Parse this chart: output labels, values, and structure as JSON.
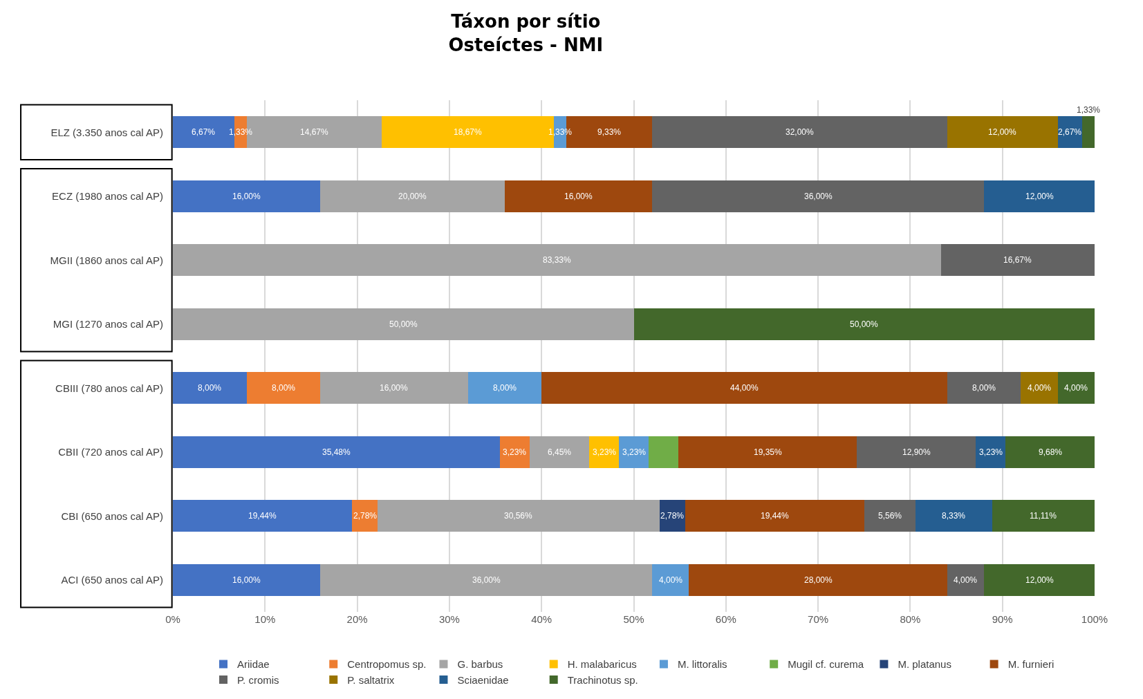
{
  "chart_data": {
    "type": "bar",
    "orientation": "horizontal",
    "stacked": true,
    "title": "Táxon por sítio\nOsteíctes - NMI",
    "categories": [
      "ELZ (3.350 anos cal AP)",
      "ECZ (1980 anos cal AP)",
      "MGII (1860 anos cal AP)",
      "MGI (1270 anos cal AP)",
      "CBIII (780 anos cal AP)",
      "CBII (720 anos cal AP)",
      "CBI (650 anos cal AP)",
      "ACI (650 anos cal AP)"
    ],
    "series": [
      {
        "name": "Ariidae",
        "color": "#4472c4",
        "values": [
          6.67,
          16,
          null,
          null,
          8,
          35.48,
          19.44,
          16
        ],
        "value_labels": [
          "6,67%",
          "16,00%",
          null,
          null,
          "8,00%",
          "35,48%",
          "19,44%",
          "16,00%"
        ]
      },
      {
        "name": "Centropomus sp.",
        "color": "#ed7d31",
        "values": [
          1.33,
          null,
          null,
          null,
          8,
          3.23,
          2.78,
          null
        ],
        "value_labels": [
          "1,33%",
          null,
          null,
          null,
          "8,00%",
          "3,23%",
          "2,78%",
          null
        ]
      },
      {
        "name": "G. barbus",
        "color": "#a5a5a5",
        "values": [
          14.67,
          20,
          83.33,
          50,
          16,
          6.45,
          30.56,
          36
        ],
        "value_labels": [
          "14,67%",
          "20,00%",
          "83,33%",
          "50,00%",
          "16,00%",
          "6,45%",
          "30,56%",
          "36,00%"
        ]
      },
      {
        "name": "H. malabaricus",
        "color": "#ffc000",
        "values": [
          18.67,
          null,
          null,
          null,
          null,
          3.23,
          null,
          null
        ],
        "value_labels": [
          "18,67%",
          null,
          null,
          null,
          null,
          "3,23%",
          null,
          null
        ]
      },
      {
        "name": "M. littoralis",
        "color": "#5b9bd5",
        "values": [
          1.33,
          null,
          null,
          null,
          8,
          3.23,
          null,
          4
        ],
        "value_labels": [
          "1,33%",
          null,
          null,
          null,
          "8,00%",
          "3,23%",
          null,
          "4,00%"
        ]
      },
      {
        "name": "Mugil cf. curema",
        "color": "#70ad47",
        "values": [
          null,
          null,
          null,
          null,
          null,
          3.23,
          null,
          null
        ],
        "value_labels": [
          null,
          null,
          null,
          null,
          null,
          null,
          null,
          null
        ]
      },
      {
        "name": "M. platanus",
        "color": "#264478",
        "values": [
          null,
          null,
          null,
          null,
          null,
          null,
          2.78,
          null
        ],
        "value_labels": [
          null,
          null,
          null,
          null,
          null,
          null,
          "2,78%",
          null
        ]
      },
      {
        "name": "M. furnieri",
        "color": "#9e480e",
        "values": [
          9.33,
          16,
          null,
          null,
          44,
          19.35,
          19.44,
          28
        ],
        "value_labels": [
          "9,33%",
          "16,00%",
          null,
          null,
          "44,00%",
          "19,35%",
          "19,44%",
          "28,00%"
        ]
      },
      {
        "name": "P. cromis",
        "color": "#636363",
        "values": [
          32,
          36,
          16.67,
          null,
          8,
          12.9,
          5.56,
          4
        ],
        "value_labels": [
          "32,00%",
          "36,00%",
          "16,67%",
          null,
          "8,00%",
          "12,90%",
          "5,56%",
          "4,00%"
        ]
      },
      {
        "name": "P. saltatrix",
        "color": "#997300",
        "values": [
          12,
          null,
          null,
          null,
          4,
          null,
          null,
          null
        ],
        "value_labels": [
          "12,00%",
          null,
          null,
          null,
          "4,00%",
          null,
          null,
          null
        ]
      },
      {
        "name": "Sciaenidae",
        "color": "#255e91",
        "values": [
          2.67,
          12,
          null,
          null,
          null,
          3.23,
          8.33,
          null
        ],
        "value_labels": [
          "2,67%",
          "12,00%",
          null,
          null,
          null,
          "3,23%",
          "8,33%",
          null
        ]
      },
      {
        "name": "Trachinotus sp.",
        "color": "#43682b",
        "values": [
          1.33,
          null,
          null,
          50,
          4,
          9.68,
          11.11,
          12
        ],
        "value_labels": [
          "1,33%",
          null,
          null,
          "50,00%",
          "4,00%",
          "9,68%",
          "11,11%",
          "12,00%"
        ]
      }
    ],
    "xlim": [
      0,
      100
    ],
    "xticks": [
      {
        "value": 0,
        "label": "0%"
      },
      {
        "value": 10,
        "label": "10%"
      },
      {
        "value": 20,
        "label": "20%"
      },
      {
        "value": 30,
        "label": "30%"
      },
      {
        "value": 40,
        "label": "40%"
      },
      {
        "value": 50,
        "label": "50%"
      },
      {
        "value": 60,
        "label": "60%"
      },
      {
        "value": 70,
        "label": "70%"
      },
      {
        "value": 80,
        "label": "80%"
      },
      {
        "value": 90,
        "label": "90%"
      },
      {
        "value": 100,
        "label": "100%"
      }
    ],
    "grid": "x",
    "legend": "bottom"
  }
}
